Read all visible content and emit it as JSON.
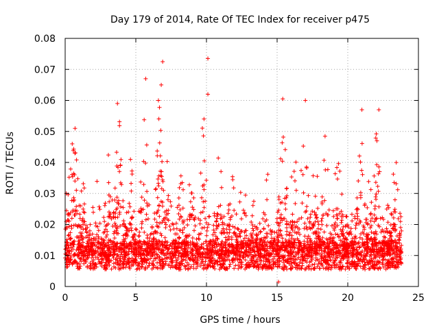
{
  "chart_data": {
    "type": "scatter",
    "title": "Day 179 of 2014, Rate Of TEC Index for receiver p475",
    "xlabel": "GPS time / hours",
    "ylabel": "ROTI / TECUs",
    "xlim": [
      0,
      25
    ],
    "ylim": [
      0,
      0.08
    ],
    "x_ticks": [
      0,
      5,
      10,
      15,
      20,
      25
    ],
    "x_tick_labels": [
      "0",
      "5",
      "10",
      "15",
      "20",
      "25"
    ],
    "y_ticks": [
      0,
      0.01,
      0.02,
      0.03,
      0.04,
      0.05,
      0.06,
      0.07,
      0.08
    ],
    "y_tick_labels": [
      "0",
      "0.01",
      "0.02",
      "0.03",
      "0.04",
      "0.05",
      "0.06",
      "0.07",
      "0.08"
    ],
    "grid": true,
    "marker": "+",
    "marker_color": "#ff0000",
    "data_range_x": [
      0,
      23.8
    ],
    "baseline_roti": 0.01,
    "series": [
      {
        "name": "ROTI",
        "notable_points": [
          {
            "x": 6.9,
            "y": 0.0725
          },
          {
            "x": 10.1,
            "y": 0.0735
          },
          {
            "x": 10.1,
            "y": 0.062
          },
          {
            "x": 5.7,
            "y": 0.067
          },
          {
            "x": 6.8,
            "y": 0.065
          },
          {
            "x": 6.6,
            "y": 0.06
          },
          {
            "x": 15.4,
            "y": 0.0605
          },
          {
            "x": 17.0,
            "y": 0.06
          },
          {
            "x": 3.7,
            "y": 0.059
          },
          {
            "x": 21.0,
            "y": 0.057
          },
          {
            "x": 22.2,
            "y": 0.057
          },
          {
            "x": 0.5,
            "y": 0.046
          },
          {
            "x": 0.7,
            "y": 0.051
          },
          {
            "x": 15.1,
            "y": 0.0015
          }
        ],
        "activity_envelope": [
          {
            "x": 0.3,
            "y_max": 0.042
          },
          {
            "x": 0.7,
            "y_max": 0.051
          },
          {
            "x": 1.3,
            "y_max": 0.035
          },
          {
            "x": 2.2,
            "y_max": 0.035
          },
          {
            "x": 3.1,
            "y_max": 0.047
          },
          {
            "x": 3.8,
            "y_max": 0.055
          },
          {
            "x": 4.6,
            "y_max": 0.046
          },
          {
            "x": 5.6,
            "y_max": 0.064
          },
          {
            "x": 6.7,
            "y_max": 0.066
          },
          {
            "x": 7.3,
            "y_max": 0.048
          },
          {
            "x": 8.2,
            "y_max": 0.038
          },
          {
            "x": 9.0,
            "y_max": 0.055
          },
          {
            "x": 9.8,
            "y_max": 0.06
          },
          {
            "x": 10.9,
            "y_max": 0.044
          },
          {
            "x": 11.8,
            "y_max": 0.038
          },
          {
            "x": 12.6,
            "y_max": 0.042
          },
          {
            "x": 13.5,
            "y_max": 0.033
          },
          {
            "x": 14.3,
            "y_max": 0.038
          },
          {
            "x": 15.4,
            "y_max": 0.058
          },
          {
            "x": 16.2,
            "y_max": 0.046
          },
          {
            "x": 16.9,
            "y_max": 0.057
          },
          {
            "x": 17.7,
            "y_max": 0.042
          },
          {
            "x": 18.4,
            "y_max": 0.05
          },
          {
            "x": 19.3,
            "y_max": 0.051
          },
          {
            "x": 20.1,
            "y_max": 0.03
          },
          {
            "x": 20.9,
            "y_max": 0.053
          },
          {
            "x": 21.5,
            "y_max": 0.035
          },
          {
            "x": 22.1,
            "y_max": 0.055
          },
          {
            "x": 22.8,
            "y_max": 0.03
          },
          {
            "x": 23.4,
            "y_max": 0.045
          }
        ]
      }
    ]
  }
}
